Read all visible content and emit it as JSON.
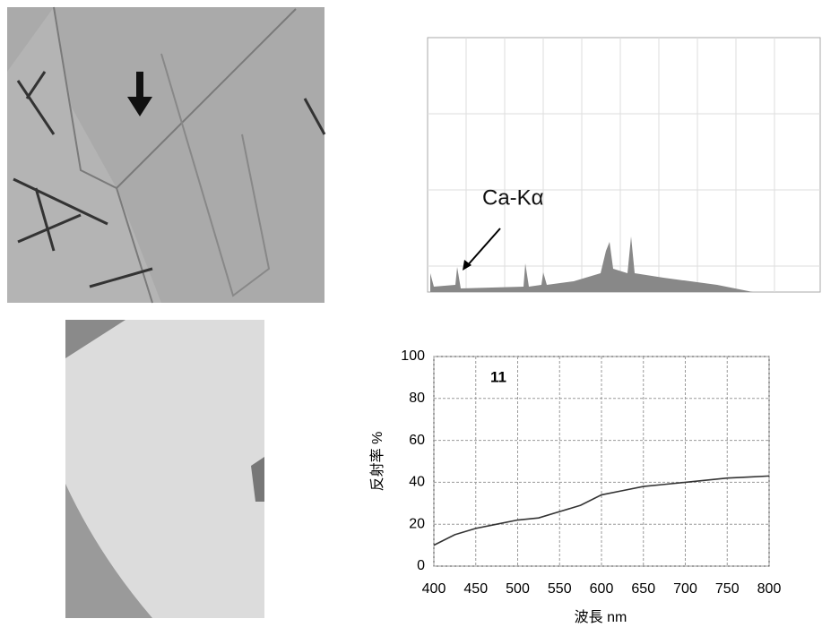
{
  "spectrum_annotation": "Ca-Kα",
  "chart_data": {
    "type": "line",
    "title": "11",
    "xlabel": "波長 nm",
    "ylabel": "反射率 %",
    "x": [
      400,
      425,
      450,
      475,
      500,
      525,
      550,
      575,
      600,
      625,
      650,
      675,
      700,
      725,
      750,
      775,
      800
    ],
    "series": [
      {
        "name": "11",
        "color": "#333333",
        "values": [
          10,
          15,
          18,
          20,
          22,
          23,
          26,
          29,
          34,
          36,
          38,
          39,
          40,
          41,
          42,
          42.5,
          43
        ]
      }
    ],
    "xlim": [
      400,
      800
    ],
    "xticks": [
      400,
      450,
      500,
      550,
      600,
      650,
      700,
      750,
      800
    ],
    "ylim": [
      0,
      100
    ],
    "yticks": [
      0,
      20,
      40,
      60,
      80,
      100
    ],
    "grid": true
  }
}
